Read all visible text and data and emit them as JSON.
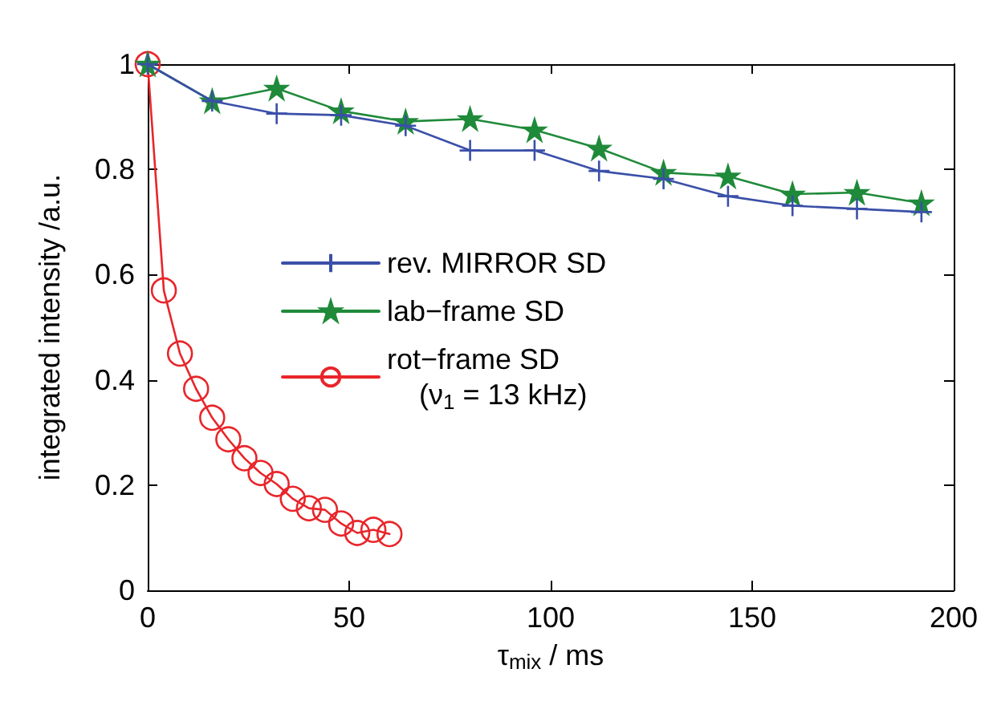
{
  "chart_data": {
    "type": "line",
    "xlabel": "τ$_{mix}$ / ms",
    "ylabel": "integrated intensity /a.u.",
    "xlim": [
      0,
      200
    ],
    "xticks": [
      0,
      50,
      100,
      150,
      200
    ],
    "ylim": [
      0,
      1
    ],
    "yticks": [
      0,
      0.2,
      0.4,
      0.6,
      0.8,
      1
    ],
    "grid": false,
    "legend": "center",
    "series": [
      {
        "name": "rev. MIRROR SD",
        "color": "#3a4fa8",
        "marker": "cross",
        "x": [
          0,
          16,
          32,
          48,
          64,
          80,
          96,
          112,
          128,
          144,
          160,
          176,
          192
        ],
        "values": [
          1,
          0.93,
          0.906,
          0.903,
          0.883,
          0.836,
          0.836,
          0.797,
          0.782,
          0.749,
          0.731,
          0.725,
          0.719
        ]
      },
      {
        "name": "lab−frame SD",
        "color": "#1f8a3a",
        "marker": "star",
        "x": [
          0,
          16,
          32,
          48,
          64,
          80,
          96,
          112,
          128,
          144,
          160,
          176,
          192
        ],
        "values": [
          1,
          0.93,
          0.954,
          0.911,
          0.891,
          0.896,
          0.875,
          0.84,
          0.794,
          0.787,
          0.753,
          0.756,
          0.736
        ]
      },
      {
        "name": "rot−frame SD\n    (ν$_{1}$ = 13 kHz)",
        "color": "#e8252a",
        "marker": "circle",
        "x": [
          0,
          4,
          8,
          12,
          16,
          20,
          24,
          28,
          32,
          36,
          40,
          44,
          48,
          52,
          56,
          60
        ],
        "values": [
          1,
          0.57,
          0.45,
          0.383,
          0.328,
          0.287,
          0.251,
          0.223,
          0.202,
          0.174,
          0.156,
          0.153,
          0.127,
          0.109,
          0.115,
          0.107
        ]
      }
    ]
  }
}
